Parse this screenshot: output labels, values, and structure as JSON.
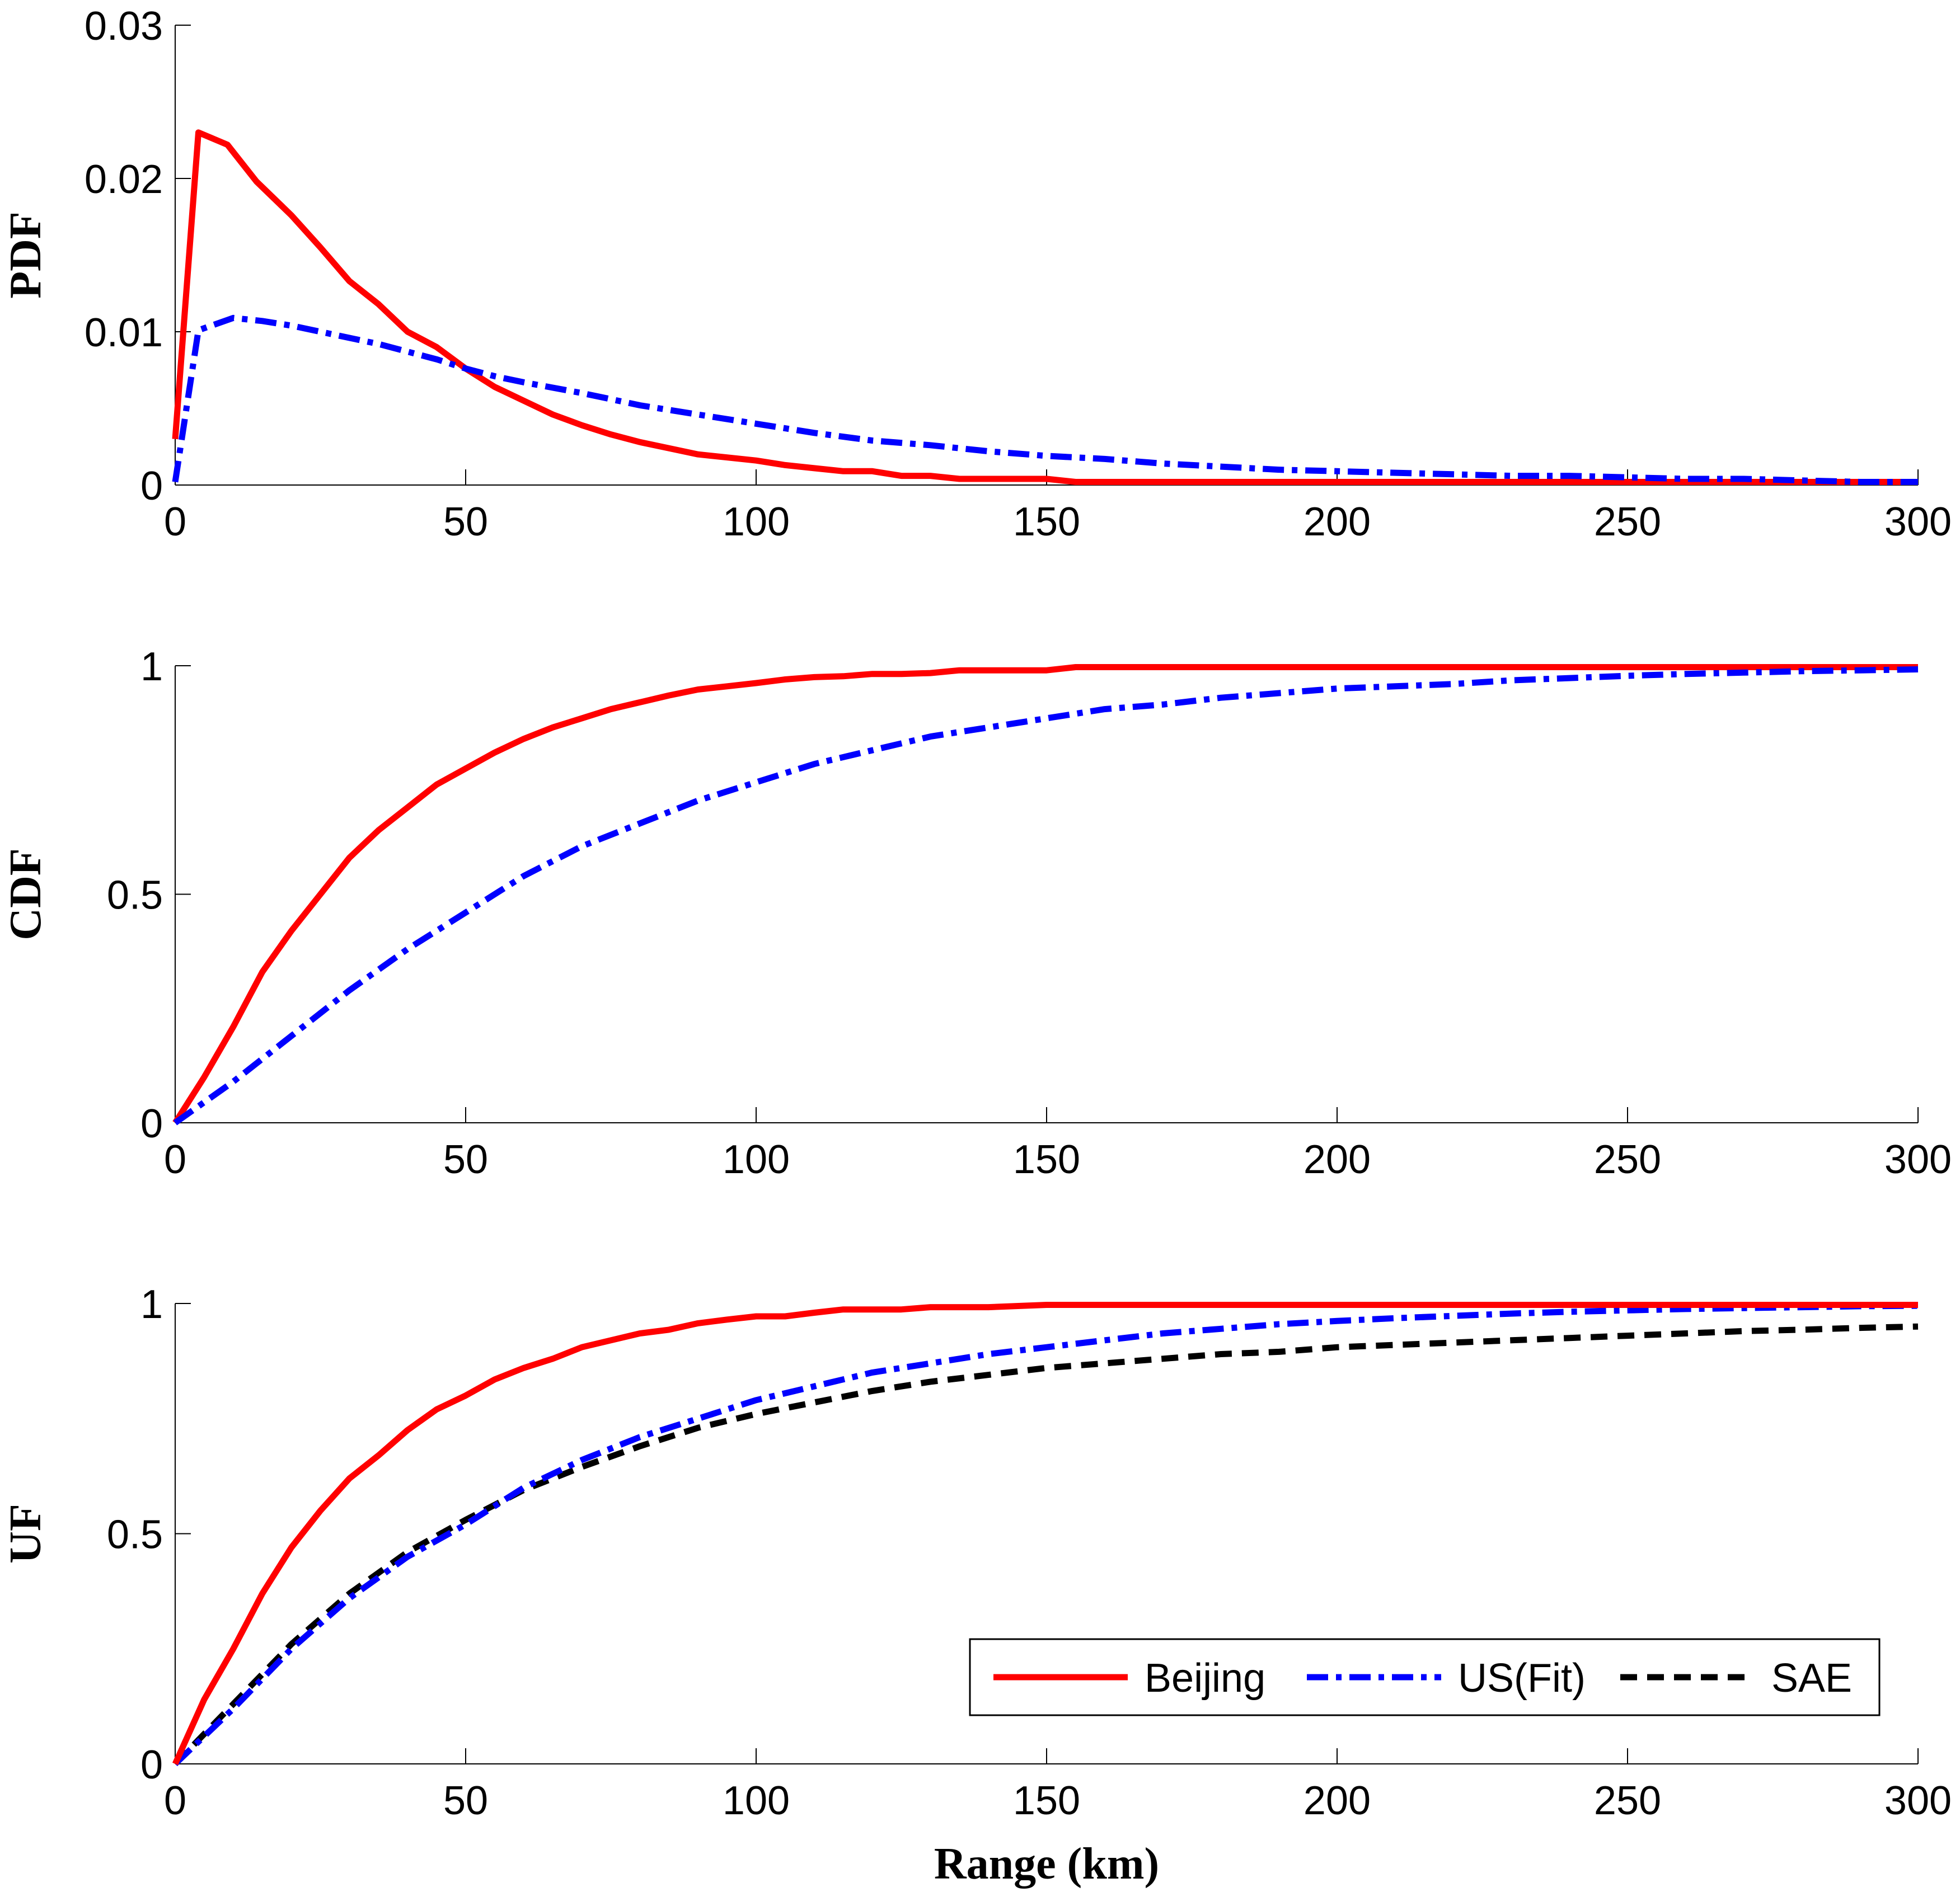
{
  "chart_data": [
    {
      "type": "line",
      "ylabel": "PDF",
      "xlabel": "",
      "xlim": [
        0,
        300
      ],
      "ylim": [
        0,
        0.03
      ],
      "xticks": [
        "0",
        "50",
        "100",
        "150",
        "200",
        "250",
        "300"
      ],
      "yticks": [
        "0",
        "0.01",
        "0.02",
        "0.03"
      ],
      "series": [
        {
          "name": "Beijing",
          "color": "#ff0000",
          "style": "solid",
          "x": [
            0,
            4,
            9,
            14,
            20,
            25,
            30,
            35,
            40,
            45,
            50,
            55,
            60,
            65,
            70,
            75,
            80,
            85,
            90,
            95,
            100,
            105,
            110,
            115,
            120,
            125,
            130,
            135,
            140,
            145,
            150,
            155,
            160,
            200,
            250,
            300
          ],
          "y": [
            0.003,
            0.023,
            0.0222,
            0.0198,
            0.0176,
            0.0155,
            0.0133,
            0.0118,
            0.01,
            0.009,
            0.0076,
            0.0064,
            0.0055,
            0.0046,
            0.0039,
            0.0033,
            0.0028,
            0.0024,
            0.002,
            0.0018,
            0.0016,
            0.0013,
            0.0011,
            0.0009,
            0.0009,
            0.0006,
            0.0006,
            0.0004,
            0.0004,
            0.0004,
            0.0004,
            0.0002,
            0.0002,
            0.0002,
            0.0002,
            0.0002
          ]
        },
        {
          "name": "US(Fit)",
          "color": "#0000ff",
          "style": "dashdot",
          "x": [
            0,
            4,
            10,
            15,
            20,
            25,
            30,
            35,
            40,
            45,
            50,
            55,
            60,
            70,
            80,
            90,
            100,
            110,
            120,
            130,
            140,
            150,
            160,
            170,
            180,
            190,
            200,
            210,
            220,
            230,
            240,
            250,
            260,
            270,
            280,
            290,
            300
          ],
          "y": [
            0.0002,
            0.0101,
            0.0109,
            0.0107,
            0.0104,
            0.01,
            0.0096,
            0.0092,
            0.0087,
            0.0082,
            0.0076,
            0.0071,
            0.0067,
            0.006,
            0.0052,
            0.0046,
            0.004,
            0.0034,
            0.0029,
            0.0026,
            0.0022,
            0.0019,
            0.0017,
            0.0014,
            0.0012,
            0.001,
            0.0009,
            0.0008,
            0.0007,
            0.0006,
            0.0006,
            0.0005,
            0.0004,
            0.0004,
            0.0003,
            0.0002,
            0.0002
          ]
        }
      ]
    },
    {
      "type": "line",
      "ylabel": "CDF",
      "xlabel": "",
      "xlim": [
        0,
        300
      ],
      "ylim": [
        0,
        1
      ],
      "xticks": [
        "0",
        "50",
        "100",
        "150",
        "200",
        "250",
        "300"
      ],
      "yticks": [
        "0",
        "0.5",
        "1"
      ],
      "series": [
        {
          "name": "Beijing",
          "color": "#ff0000",
          "style": "solid",
          "x": [
            0,
            5,
            10,
            15,
            20,
            25,
            30,
            35,
            40,
            45,
            50,
            55,
            60,
            65,
            70,
            75,
            80,
            85,
            90,
            95,
            100,
            105,
            110,
            115,
            120,
            125,
            130,
            135,
            140,
            150,
            155,
            200,
            250,
            300
          ],
          "y": [
            0,
            0.1,
            0.21,
            0.33,
            0.42,
            0.5,
            0.58,
            0.64,
            0.69,
            0.74,
            0.775,
            0.81,
            0.84,
            0.865,
            0.885,
            0.905,
            0.92,
            0.935,
            0.948,
            0.955,
            0.962,
            0.97,
            0.975,
            0.977,
            0.982,
            0.982,
            0.984,
            0.99,
            0.99,
            0.99,
            0.997,
            0.997,
            0.997,
            0.997
          ]
        },
        {
          "name": "US(Fit)",
          "color": "#0000ff",
          "style": "dashdot",
          "x": [
            0,
            10,
            20,
            30,
            40,
            50,
            60,
            70,
            80,
            90,
            100,
            110,
            120,
            130,
            140,
            150,
            160,
            170,
            180,
            190,
            200,
            210,
            220,
            230,
            240,
            250,
            260,
            270,
            280,
            290,
            300
          ],
          "y": [
            0,
            0.09,
            0.19,
            0.29,
            0.38,
            0.46,
            0.54,
            0.605,
            0.655,
            0.705,
            0.745,
            0.785,
            0.815,
            0.845,
            0.865,
            0.885,
            0.905,
            0.915,
            0.93,
            0.94,
            0.95,
            0.955,
            0.96,
            0.968,
            0.973,
            0.978,
            0.982,
            0.985,
            0.988,
            0.99,
            0.992
          ]
        }
      ]
    },
    {
      "type": "line",
      "ylabel": "UF",
      "xlabel": "Range (km)",
      "xlim": [
        0,
        300
      ],
      "ylim": [
        0,
        1
      ],
      "xticks": [
        "0",
        "50",
        "100",
        "150",
        "200",
        "250",
        "300"
      ],
      "yticks": [
        "0",
        "0.5",
        "1"
      ],
      "legend": {
        "position": "bottom-right",
        "entries": [
          "Beijing",
          "US(Fit)",
          "SAE"
        ]
      },
      "series": [
        {
          "name": "Beijing",
          "color": "#ff0000",
          "style": "solid",
          "x": [
            0,
            5,
            10,
            15,
            20,
            25,
            30,
            35,
            40,
            45,
            50,
            55,
            60,
            65,
            70,
            75,
            80,
            85,
            90,
            95,
            100,
            105,
            110,
            115,
            120,
            125,
            130,
            135,
            140,
            150,
            200,
            250,
            300
          ],
          "y": [
            0,
            0.14,
            0.25,
            0.37,
            0.47,
            0.55,
            0.62,
            0.67,
            0.725,
            0.77,
            0.8,
            0.835,
            0.86,
            0.88,
            0.905,
            0.92,
            0.935,
            0.943,
            0.957,
            0.965,
            0.972,
            0.972,
            0.98,
            0.987,
            0.987,
            0.987,
            0.992,
            0.992,
            0.992,
            0.997,
            0.997,
            0.997,
            0.997
          ]
        },
        {
          "name": "US(Fit)",
          "color": "#0000ff",
          "style": "dashdot",
          "x": [
            0,
            10,
            20,
            30,
            40,
            50,
            60,
            70,
            80,
            90,
            100,
            110,
            120,
            130,
            140,
            150,
            160,
            170,
            180,
            190,
            200,
            210,
            220,
            230,
            240,
            250,
            260,
            270,
            280,
            290,
            300
          ],
          "y": [
            0,
            0.12,
            0.25,
            0.36,
            0.45,
            0.52,
            0.6,
            0.66,
            0.71,
            0.75,
            0.79,
            0.82,
            0.85,
            0.87,
            0.89,
            0.905,
            0.92,
            0.935,
            0.945,
            0.955,
            0.962,
            0.968,
            0.973,
            0.978,
            0.982,
            0.985,
            0.988,
            0.99,
            0.992,
            0.994,
            0.995
          ]
        },
        {
          "name": "SAE",
          "color": "#000000",
          "style": "dashed",
          "x": [
            0,
            10,
            20,
            30,
            40,
            50,
            60,
            70,
            80,
            90,
            100,
            110,
            120,
            130,
            140,
            150,
            160,
            170,
            180,
            190,
            200,
            210,
            220,
            230,
            240,
            250,
            260,
            270,
            280,
            290,
            300
          ],
          "y": [
            0,
            0.13,
            0.26,
            0.37,
            0.46,
            0.53,
            0.595,
            0.645,
            0.69,
            0.73,
            0.76,
            0.785,
            0.81,
            0.83,
            0.845,
            0.86,
            0.87,
            0.88,
            0.89,
            0.895,
            0.905,
            0.91,
            0.915,
            0.92,
            0.925,
            0.93,
            0.935,
            0.94,
            0.943,
            0.947,
            0.95
          ]
        }
      ]
    }
  ]
}
